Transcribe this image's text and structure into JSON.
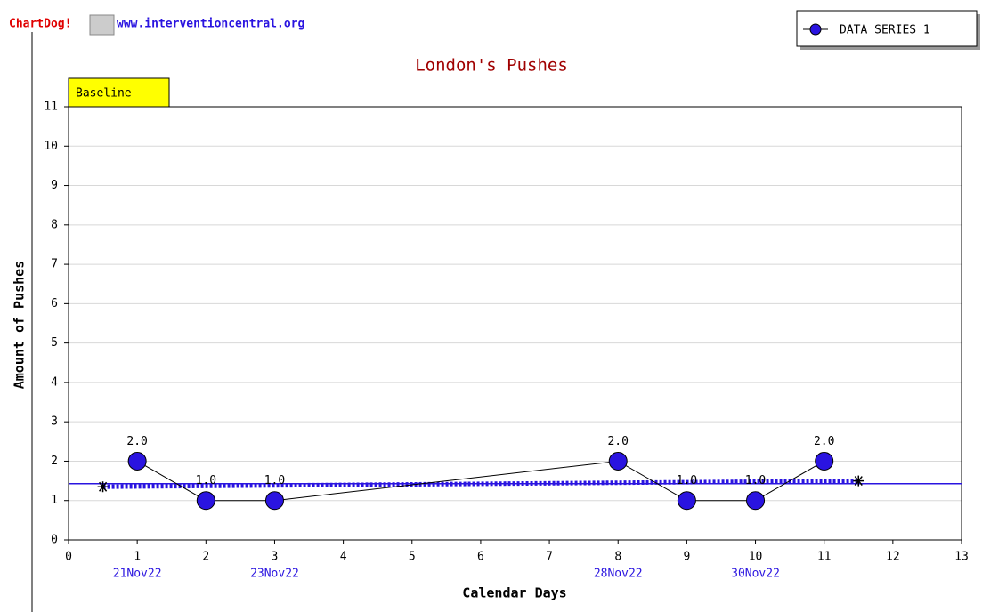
{
  "header": {
    "brand": "ChartDog!",
    "url": "www.interventioncentral.org"
  },
  "chart_data": {
    "type": "line",
    "title": "London's Pushes",
    "xlabel": "Calendar Days",
    "ylabel": "Amount of Pushes",
    "phase_label": "Baseline",
    "x": [
      1,
      2,
      3,
      8,
      9,
      10,
      11
    ],
    "series": [
      {
        "name": "DATA SERIES 1",
        "color": "#2a14e0",
        "values": [
          2,
          1,
          1,
          2,
          1,
          1,
          2
        ],
        "value_labels": [
          "2.0",
          "1.0",
          "1.0",
          "2.0",
          "1.0",
          "1.0",
          "2.0"
        ]
      }
    ],
    "date_labels": [
      {
        "x": 1,
        "label": "21Nov22"
      },
      {
        "x": 3,
        "label": "23Nov22"
      },
      {
        "x": 8,
        "label": "28Nov22"
      },
      {
        "x": 10,
        "label": "30Nov22"
      }
    ],
    "trend_line": {
      "x": [
        0.5,
        11.5
      ],
      "values": [
        1.35,
        1.5
      ]
    },
    "mean_line": 1.43,
    "xlim": [
      0,
      13
    ],
    "ylim": [
      0,
      11
    ],
    "xticks": [
      0,
      1,
      2,
      3,
      4,
      5,
      6,
      7,
      8,
      9,
      10,
      11,
      12,
      13
    ],
    "yticks": [
      0,
      1,
      2,
      3,
      4,
      5,
      6,
      7,
      8,
      9,
      10,
      11
    ],
    "grid": true
  }
}
